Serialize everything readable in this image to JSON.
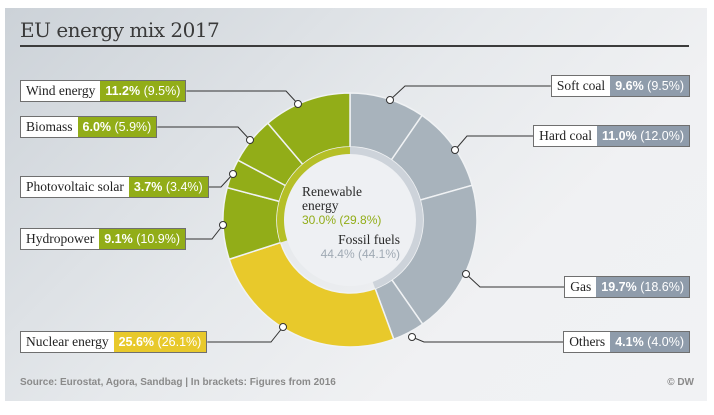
{
  "title": "EU energy mix 2017",
  "source": "Source:  Eurostat, Agora, Sandbag | In brackets: Figures from 2016",
  "credit": "© DW",
  "colors": {
    "renewable": "#92ad18",
    "fossil": "#a8b3bc",
    "nuclear": "#e8c92b",
    "renewable_inner": "#b5bf27",
    "fossil_inner": "#cdd3da"
  },
  "center": {
    "renewable_label": "Renewable energy",
    "renewable_value": "30.0% (29.8%)",
    "fossil_label": "Fossil fuels",
    "fossil_value": "44.4% (44.1%)"
  },
  "chart_data": {
    "type": "pie",
    "title": "EU energy mix 2017",
    "unit": "%",
    "slices": [
      {
        "name": "Soft coal",
        "value": 9.6,
        "prev": 9.5,
        "group": "fossil",
        "value_text": "9.6%",
        "prev_text": "(9.5%)"
      },
      {
        "name": "Hard coal",
        "value": 11.0,
        "prev": 12.0,
        "group": "fossil",
        "value_text": "11.0%",
        "prev_text": "(12.0%)"
      },
      {
        "name": "Gas",
        "value": 19.7,
        "prev": 18.6,
        "group": "fossil",
        "value_text": "19.7%",
        "prev_text": "(18.6%)"
      },
      {
        "name": "Others",
        "value": 4.1,
        "prev": 4.0,
        "group": "fossil",
        "value_text": "4.1%",
        "prev_text": "(4.0%)"
      },
      {
        "name": "Nuclear energy",
        "value": 25.6,
        "prev": 26.1,
        "group": "nuclear",
        "value_text": "25.6%",
        "prev_text": "(26.1%)"
      },
      {
        "name": "Hydropower",
        "value": 9.1,
        "prev": 10.9,
        "group": "renewable",
        "value_text": "9.1%",
        "prev_text": "(10.9%)"
      },
      {
        "name": "Photovoltaic solar",
        "value": 3.7,
        "prev": 3.4,
        "group": "renewable",
        "value_text": "3.7%",
        "prev_text": "(3.4%)"
      },
      {
        "name": "Biomass",
        "value": 6.0,
        "prev": 5.9,
        "group": "renewable",
        "value_text": "6.0%",
        "prev_text": "(5.9%)"
      },
      {
        "name": "Wind energy",
        "value": 11.2,
        "prev": 9.5,
        "group": "renewable",
        "value_text": "11.2%",
        "prev_text": "(9.5%)"
      }
    ],
    "groups": [
      {
        "name": "Fossil fuels",
        "value": 44.4,
        "prev": 44.1
      },
      {
        "name": "Renewable energy",
        "value": 30.0,
        "prev": 29.8
      }
    ]
  }
}
